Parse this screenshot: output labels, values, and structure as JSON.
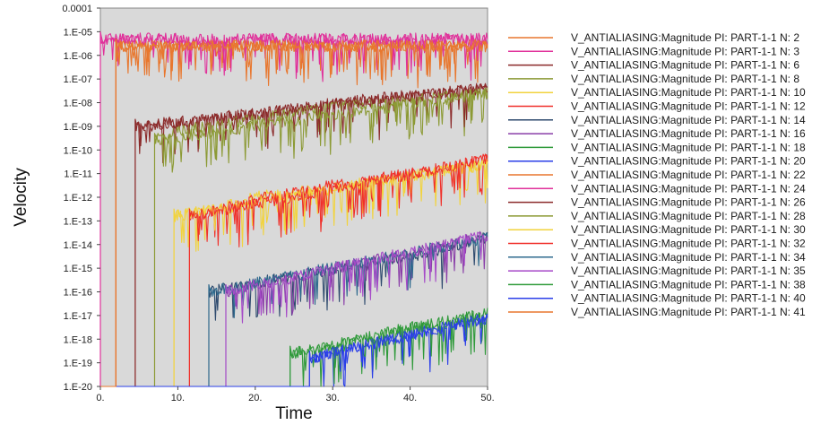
{
  "chart_data": {
    "type": "line",
    "xlabel": "Time",
    "ylabel": "Velocity",
    "xlim": [
      0,
      50
    ],
    "ylim_log10": [
      -20,
      -4
    ],
    "y_scale": "log",
    "grid": false,
    "legend_position": "right",
    "background": "#d9d9d9",
    "x_ticks": [
      "0.",
      "10.",
      "20.",
      "30.",
      "40.",
      "50."
    ],
    "x_tick_values": [
      0,
      10,
      20,
      30,
      40,
      50
    ],
    "y_ticks": [
      "1.E-20",
      "1.E-19",
      "1.E-18",
      "1.E-17",
      "1.E-16",
      "1.E-15",
      "1.E-14",
      "1.E-13",
      "1.E-12",
      "1.E-11",
      "1.E-10",
      "1.E-09",
      "1.E-08",
      "1.E-07",
      "1.E-06",
      "1.E-05",
      "0.0001"
    ],
    "y_tick_exponents": [
      -20,
      -19,
      -18,
      -17,
      -16,
      -15,
      -14,
      -13,
      -12,
      -11,
      -10,
      -9,
      -8,
      -7,
      -6,
      -5,
      -4
    ],
    "series": [
      {
        "name": "V_ANTIALIASING:Magnitude PI: PART-1-1 N: 2",
        "color": "#e8772e",
        "onset_time": 2.0,
        "x": [
          2,
          10,
          20,
          30,
          40,
          50
        ],
        "log10_velocity": [
          -5.6,
          -5.6,
          -5.6,
          -5.6,
          -5.6,
          -5.6
        ]
      },
      {
        "name": "V_ANTIALIASING:Magnitude PI: PART-1-1 N: 3",
        "color": "#e0309a",
        "onset_time": 0.0,
        "x": [
          0,
          10,
          20,
          30,
          40,
          50
        ],
        "log10_velocity": [
          -5.3,
          -5.3,
          -5.3,
          -5.3,
          -5.3,
          -5.3
        ]
      },
      {
        "name": "V_ANTIALIASING:Magnitude PI: PART-1-1 N: 6",
        "color": "#8b2a2a",
        "onset_time": 4.5,
        "x": [
          4.5,
          10,
          20,
          30,
          40,
          50
        ],
        "log10_velocity": [
          -9.0,
          -8.9,
          -8.5,
          -8.0,
          -7.7,
          -7.4
        ]
      },
      {
        "name": "V_ANTIALIASING:Magnitude PI: PART-1-1 N: 8",
        "color": "#8c9a35",
        "onset_time": 7.0,
        "x": [
          7,
          10,
          20,
          30,
          40,
          50
        ],
        "log10_velocity": [
          -9.6,
          -9.2,
          -8.7,
          -8.2,
          -7.9,
          -7.6
        ]
      },
      {
        "name": "V_ANTIALIASING:Magnitude PI: PART-1-1 N: 10",
        "color": "#f2d33c",
        "onset_time": 9.5,
        "x": [
          9.5,
          15,
          20,
          30,
          40,
          50
        ],
        "log10_velocity": [
          -12.8,
          -12.5,
          -12.0,
          -11.6,
          -11.1,
          -10.6
        ]
      },
      {
        "name": "V_ANTIALIASING:Magnitude PI: PART-1-1 N: 12",
        "color": "#f0302a",
        "onset_time": 11.5,
        "x": [
          11.5,
          15,
          20,
          30,
          40,
          50
        ],
        "log10_velocity": [
          -12.8,
          -12.6,
          -12.1,
          -11.5,
          -11.0,
          -10.4
        ]
      },
      {
        "name": "V_ANTIALIASING:Magnitude PI: PART-1-1 N: 14",
        "color": "#2e4a6e",
        "onset_time": 14.0,
        "x": [
          14,
          20,
          30,
          40,
          50
        ],
        "log10_velocity": [
          -16.0,
          -15.6,
          -15.1,
          -14.5,
          -13.7
        ]
      },
      {
        "name": "V_ANTIALIASING:Magnitude PI: PART-1-1 N: 16",
        "color": "#8a3ea8",
        "onset_time": 16.2,
        "x": [
          16.2,
          20,
          30,
          40,
          50
        ],
        "log10_velocity": [
          -16.0,
          -15.7,
          -15.0,
          -14.4,
          -13.6
        ]
      },
      {
        "name": "V_ANTIALIASING:Magnitude PI: PART-1-1 N: 18",
        "color": "#2f9a3a",
        "onset_time": 24.5,
        "x": [
          24.5,
          30,
          40,
          50
        ],
        "log10_velocity": [
          -18.6,
          -18.3,
          -17.5,
          -16.9
        ]
      },
      {
        "name": "V_ANTIALIASING:Magnitude PI: PART-1-1 N: 20",
        "color": "#2a3ee8",
        "onset_time": 27.0,
        "x": [
          27,
          30,
          40,
          50
        ],
        "log10_velocity": [
          -18.8,
          -18.6,
          -17.8,
          -17.1
        ]
      },
      {
        "name": "V_ANTIALIASING:Magnitude PI: PART-1-1 N: 22",
        "color": "#e8772e",
        "onset_time": 2.0,
        "x": [
          2,
          50
        ],
        "log10_velocity": [
          -5.6,
          -5.6
        ]
      },
      {
        "name": "V_ANTIALIASING:Magnitude PI: PART-1-1 N: 24",
        "color": "#e0309a",
        "onset_time": 0.0,
        "x": [
          0,
          50
        ],
        "log10_velocity": [
          -5.3,
          -5.3
        ]
      },
      {
        "name": "V_ANTIALIASING:Magnitude PI: PART-1-1 N: 26",
        "color": "#8b2a2a",
        "onset_time": 4.5,
        "x": [
          4.5,
          50
        ],
        "log10_velocity": [
          -9.0,
          -7.4
        ]
      },
      {
        "name": "V_ANTIALIASING:Magnitude PI: PART-1-1 N: 28",
        "color": "#8c9a35",
        "onset_time": 7.0,
        "x": [
          7,
          50
        ],
        "log10_velocity": [
          -9.6,
          -7.6
        ]
      },
      {
        "name": "V_ANTIALIASING:Magnitude PI: PART-1-1 N: 30",
        "color": "#f2d33c",
        "onset_time": 9.5,
        "x": [
          9.5,
          50
        ],
        "log10_velocity": [
          -12.8,
          -10.6
        ]
      },
      {
        "name": "V_ANTIALIASING:Magnitude PI: PART-1-1 N: 32",
        "color": "#f0302a",
        "onset_time": 11.5,
        "x": [
          11.5,
          50
        ],
        "log10_velocity": [
          -12.8,
          -10.4
        ]
      },
      {
        "name": "V_ANTIALIASING:Magnitude PI: PART-1-1 N: 34",
        "color": "#2e6a8e",
        "onset_time": 14.0,
        "x": [
          14,
          50
        ],
        "log10_velocity": [
          -16.0,
          -13.7
        ]
      },
      {
        "name": "V_ANTIALIASING:Magnitude PI: PART-1-1 N: 35",
        "color": "#a64ac8",
        "onset_time": 16.2,
        "x": [
          16.2,
          50
        ],
        "log10_velocity": [
          -16.0,
          -13.6
        ]
      },
      {
        "name": "V_ANTIALIASING:Magnitude PI: PART-1-1 N: 38",
        "color": "#2f9a3a",
        "onset_time": 24.5,
        "x": [
          24.5,
          50
        ],
        "log10_velocity": [
          -18.6,
          -16.9
        ]
      },
      {
        "name": "V_ANTIALIASING:Magnitude PI: PART-1-1 N: 40",
        "color": "#2a3ee8",
        "onset_time": 27.0,
        "x": [
          27,
          50
        ],
        "log10_velocity": [
          -18.8,
          -17.1
        ]
      },
      {
        "name": "V_ANTIALIASING:Magnitude PI: PART-1-1 N: 41",
        "color": "#e8772e",
        "onset_time": 2.0,
        "x": [
          2,
          50
        ],
        "log10_velocity": [
          -5.6,
          -5.6
        ]
      }
    ]
  }
}
